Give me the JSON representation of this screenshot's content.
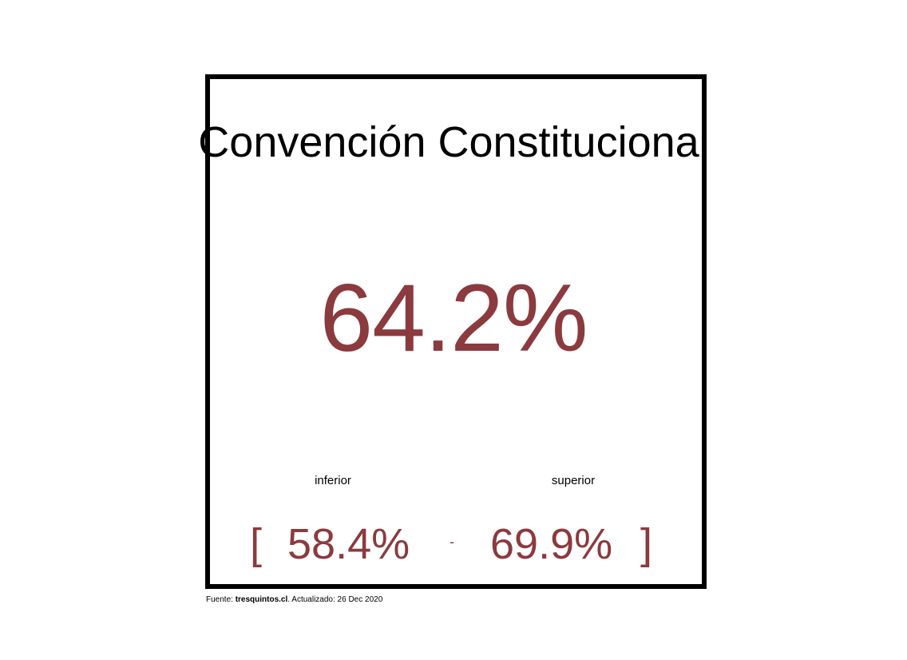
{
  "accent_color": "#8b3a3e",
  "chart_data": {
    "type": "table",
    "title": "Convención Constitucional",
    "value": 64.2,
    "value_label": "64.2%",
    "interval": {
      "lower_label": "inferior",
      "lower_value": 58.4,
      "lower_text": "58.4%",
      "upper_label": "superior",
      "upper_value": 69.9,
      "upper_text": "69.9%",
      "open_bracket": "[",
      "separator": "-",
      "close_bracket": "]"
    }
  },
  "footer": {
    "source_prefix": "Fuente: ",
    "source_name": "tresquintos.cl",
    "updated_text": ". Actualizado: 26 Dec 2020"
  }
}
